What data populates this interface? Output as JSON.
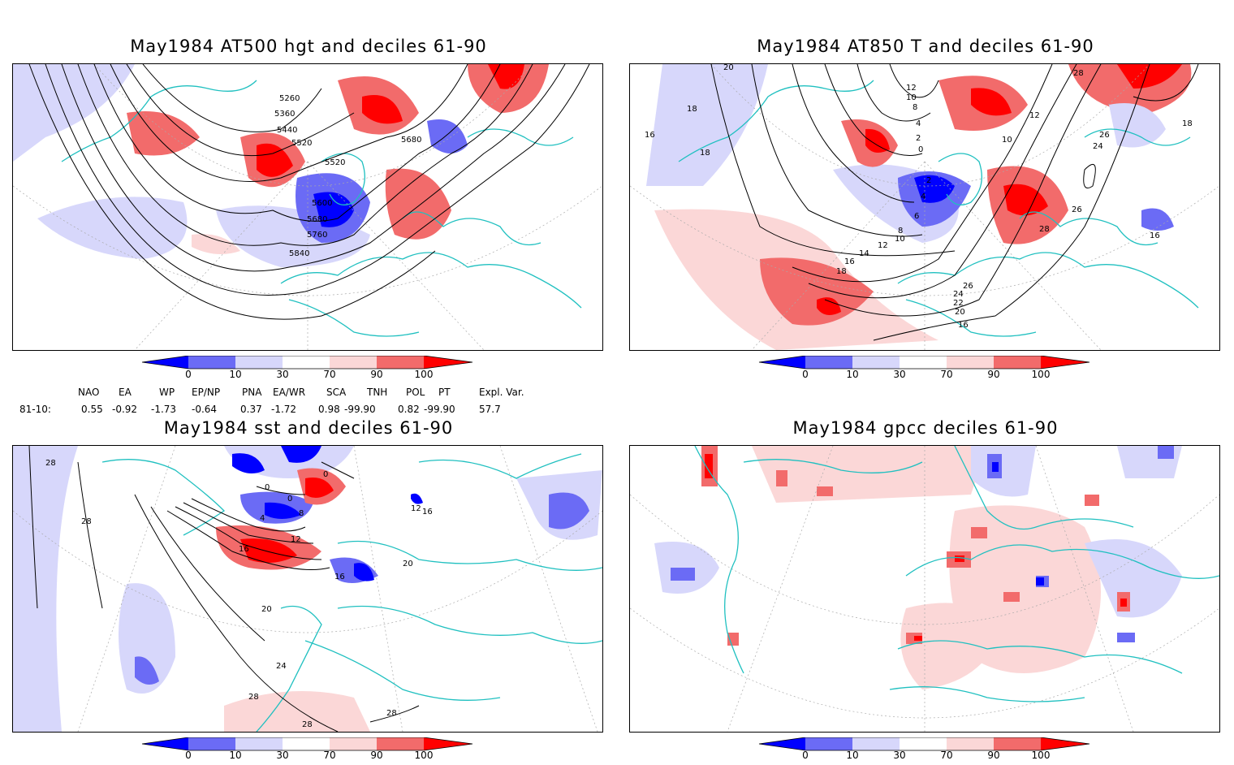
{
  "colors": {
    "land_boundary": "#20c0c0",
    "lowest": "#0000ff",
    "low": "#6b6bf5",
    "below": "#d7d7fb",
    "above": "#fbd7d7",
    "high": "#f26b6b",
    "highest": "#ff0000",
    "contour": "#000000"
  },
  "legend_ticks": [
    "0",
    "10",
    "30",
    "70",
    "90",
    "100"
  ],
  "panels": [
    {
      "title": "May1984 AT500 hgt and deciles 61-90",
      "contour_labels": [
        "5260",
        "5360",
        "5440",
        "5520",
        "5520",
        "5600",
        "5680",
        "5680",
        "5760",
        "5840"
      ]
    },
    {
      "title": "May1984 AT850 T and deciles 61-90",
      "contour_labels": [
        "20",
        "18",
        "16",
        "18",
        "12",
        "10",
        "8",
        "4",
        "2",
        "0",
        "2",
        "4",
        "6",
        "8",
        "10",
        "12",
        "14",
        "16",
        "18",
        "16",
        "20",
        "22",
        "24",
        "26",
        "28",
        "26",
        "24",
        "26",
        "28",
        "10",
        "12",
        "16",
        "18"
      ]
    },
    {
      "title": "May1984 sst and deciles 61-90",
      "contour_labels": [
        "28",
        "28",
        "0",
        "0",
        "0",
        "4",
        "8",
        "12",
        "16",
        "20",
        "20",
        "24",
        "28",
        "28",
        "28",
        "16",
        "12",
        "16"
      ]
    },
    {
      "title": "May1984 gpcc deciles 61-90",
      "contour_labels": []
    }
  ],
  "indices": {
    "header": [
      "NAO",
      "EA",
      "WP",
      "EP/NP",
      "PNA",
      "EA/WR",
      "SCA",
      "TNH",
      "POL",
      "PT",
      "Expl. Var."
    ],
    "row_label": "81-10:",
    "values": [
      "0.55",
      "-0.92",
      "-1.73",
      "-0.64",
      "0.37",
      "-1.72",
      "0.98",
      "-99.90",
      "0.82",
      "-99.90",
      "57.7"
    ]
  }
}
